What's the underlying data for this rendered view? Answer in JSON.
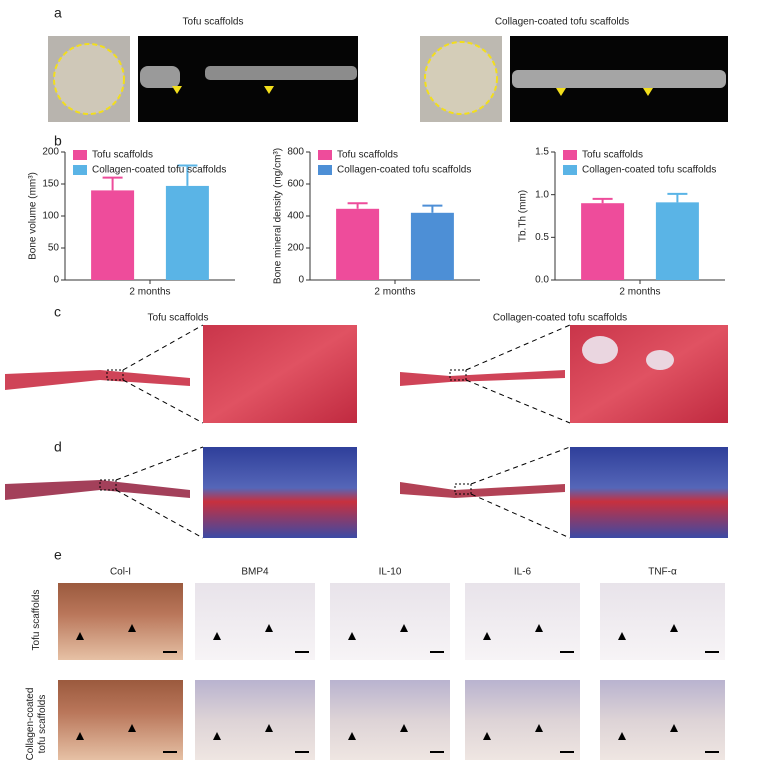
{
  "figure": {
    "panel_labels": [
      "a",
      "b",
      "c",
      "d",
      "e"
    ],
    "a_titles": [
      "Tofu scaffolds",
      "Collagen-coated tofu scaffolds"
    ],
    "c_titles": [
      "Tofu scaffolds",
      "Collagen-coated tofu scaffolds"
    ],
    "e_columns": [
      "Col-I",
      "BMP4",
      "IL-10",
      "IL-6",
      "TNF-α"
    ],
    "e_rows": [
      "Tofu scaffolds",
      "Collagen-coated tofu scaffolds"
    ]
  },
  "chart_data": [
    {
      "type": "bar",
      "y_label": "Bone volume (mm³)",
      "categories": [
        "2 months"
      ],
      "legend": "upper left",
      "series": [
        {
          "name": "Tofu scaffolds",
          "color": "#ee4c9b",
          "values": [
            140
          ],
          "errors": [
            20
          ]
        },
        {
          "name": "Collagen-coated tofu scaffolds",
          "color": "#5ab4e6",
          "values": [
            147
          ],
          "errors": [
            32
          ]
        }
      ],
      "ylim": [
        0,
        200
      ],
      "yticks": [
        0,
        50,
        100,
        150,
        200
      ]
    },
    {
      "type": "bar",
      "y_label": "Bone mineral density (mg/cm³)",
      "categories": [
        "2 months"
      ],
      "legend": "upper left",
      "series": [
        {
          "name": "Tofu scaffolds",
          "color": "#ee4c9b",
          "values": [
            445
          ],
          "errors": [
            35
          ]
        },
        {
          "name": "Collagen-coated tofu scaffolds",
          "color": "#4d8fd6",
          "values": [
            420
          ],
          "errors": [
            45
          ]
        }
      ],
      "ylim": [
        0,
        800
      ],
      "yticks": [
        0,
        200,
        400,
        600,
        800
      ]
    },
    {
      "type": "bar",
      "y_label": "Tb.Th (mm)",
      "categories": [
        "2 months"
      ],
      "legend": "upper left",
      "series": [
        {
          "name": "Tofu scaffolds",
          "color": "#ee4c9b",
          "values": [
            0.9
          ],
          "errors": [
            0.05
          ]
        },
        {
          "name": "Collagen-coated tofu scaffolds",
          "color": "#5ab4e6",
          "values": [
            0.91
          ],
          "errors": [
            0.1
          ]
        }
      ],
      "ylim": [
        0,
        1.5
      ],
      "yticks": [
        {
          "value": 0,
          "label": "0.0"
        },
        {
          "value": 0.5,
          "label": "0.5"
        },
        {
          "value": 1,
          "label": "1.0"
        },
        {
          "value": 1.5,
          "label": "1.5"
        }
      ]
    }
  ]
}
